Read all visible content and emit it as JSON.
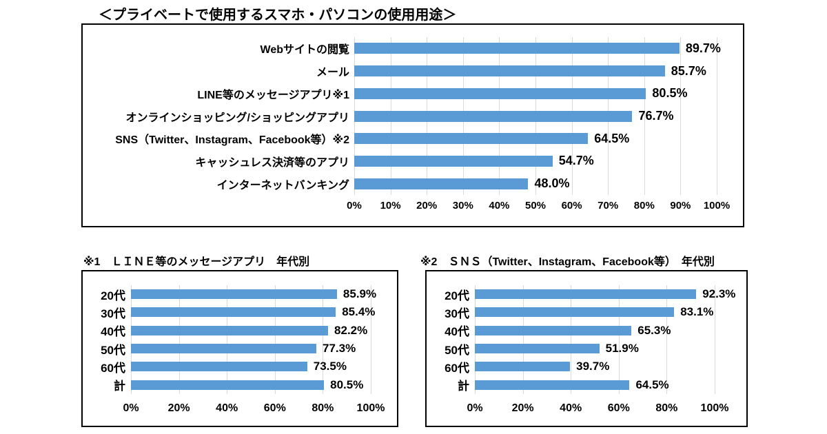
{
  "colors": {
    "bar": "#5B9BD5",
    "gridline": "#D9D9D9",
    "border": "#000000",
    "text": "#000000"
  },
  "chart_data": [
    {
      "id": "private-device-usage",
      "type": "bar",
      "orientation": "horizontal",
      "title": "＜プライベートで使用するスマホ・パソコンの使用用途＞",
      "categories": [
        "Webサイトの閲覧",
        "メール",
        "LINE等のメッセージアプリ※1",
        "オンラインショッピング/ショッピングアプリ",
        "SNS（Twitter、Instagram、Facebook等）※2",
        "キャッシュレス決済等のアプリ",
        "インターネットバンキング"
      ],
      "values": [
        89.7,
        85.7,
        80.5,
        76.7,
        64.5,
        54.7,
        48.0
      ],
      "value_labels": [
        "89.7%",
        "85.7%",
        "80.5%",
        "76.7%",
        "64.5%",
        "54.7%",
        "48.0%"
      ],
      "xlim": [
        0,
        100
      ],
      "tick_step": 10,
      "ticks": [
        "0%",
        "10%",
        "20%",
        "30%",
        "40%",
        "50%",
        "60%",
        "70%",
        "80%",
        "90%",
        "100%"
      ],
      "grid": "vertical",
      "legend": "none"
    },
    {
      "id": "line-app-by-age",
      "type": "bar",
      "orientation": "horizontal",
      "title": "※1　ＬＩＮＥ等のメッセージアプリ　年代別",
      "categories": [
        "20代",
        "30代",
        "40代",
        "50代",
        "60代",
        "計"
      ],
      "values": [
        85.9,
        85.4,
        82.2,
        77.3,
        73.5,
        80.5
      ],
      "value_labels": [
        "85.9%",
        "85.4%",
        "82.2%",
        "77.3%",
        "73.5%",
        "80.5%"
      ],
      "xlim": [
        0,
        100
      ],
      "tick_step": 20,
      "ticks": [
        "0%",
        "20%",
        "40%",
        "60%",
        "80%",
        "100%"
      ],
      "grid": "vertical",
      "legend": "none"
    },
    {
      "id": "sns-by-age",
      "type": "bar",
      "orientation": "horizontal",
      "title": "※2　ＳＮＳ（Twitter、Instagram、Facebook等）　年代別",
      "categories": [
        "20代",
        "30代",
        "40代",
        "50代",
        "60代",
        "計"
      ],
      "values": [
        92.3,
        83.1,
        65.3,
        51.9,
        39.7,
        64.5
      ],
      "value_labels": [
        "92.3%",
        "83.1%",
        "65.3%",
        "51.9%",
        "39.7%",
        "64.5%"
      ],
      "xlim": [
        0,
        100
      ],
      "tick_step": 20,
      "ticks": [
        "0%",
        "20%",
        "40%",
        "60%",
        "80%",
        "100%"
      ],
      "grid": "vertical",
      "legend": "none"
    }
  ]
}
